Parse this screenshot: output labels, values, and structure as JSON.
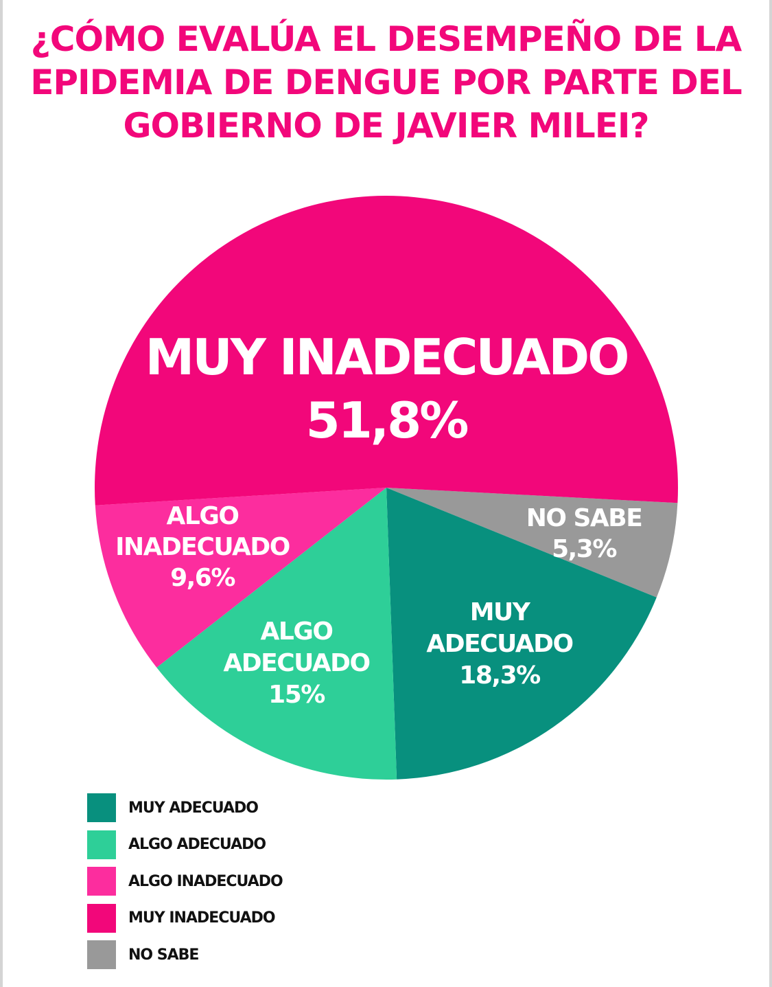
{
  "title": "¿CÓMO EVALÚA EL DESEMPEÑO DE LA EPIDEMIA DE DENGUE POR PARTE DEL GOBIERNO DE JAVIER MILEI?",
  "colors": {
    "title": "#f2077a",
    "muy_adecuado": "#08907e",
    "algo_adecuado": "#2ecf98",
    "algo_inadecuado": "#fc2d9e",
    "muy_inadecuado": "#f2077a",
    "no_sabe": "#999999"
  },
  "chart_data": {
    "type": "pie",
    "title": "¿CÓMO EVALÚA EL DESEMPEÑO DE LA EPIDEMIA DE DENGUE POR PARTE DEL GOBIERNO DE JAVIER MILEI?",
    "slices": [
      {
        "key": "no_sabe",
        "label_lines": [
          "NO SABE"
        ],
        "value_label": "5,3%",
        "value": 5.3,
        "color": "#999999"
      },
      {
        "key": "muy_adecuado",
        "label_lines": [
          "MUY",
          "ADECUADO"
        ],
        "value_label": "18,3%",
        "value": 18.3,
        "color": "#08907e"
      },
      {
        "key": "algo_adecuado",
        "label_lines": [
          "ALGO",
          "ADECUADO"
        ],
        "value_label": "15%",
        "value": 15,
        "color": "#2ecf98"
      },
      {
        "key": "algo_inadecuado",
        "label_lines": [
          "ALGO",
          "INADECUADO"
        ],
        "value_label": "9,6%",
        "value": 9.6,
        "color": "#fc2d9e"
      },
      {
        "key": "muy_inadecuado",
        "label_lines": [
          "MUY INADECUADO"
        ],
        "value_label": "51,8%",
        "value": 51.8,
        "color": "#f2077a"
      }
    ],
    "legend": [
      {
        "label": "MUY ADECUADO",
        "color": "#08907e"
      },
      {
        "label": "ALGO ADECUADO",
        "color": "#2ecf98"
      },
      {
        "label": "ALGO INADECUADO",
        "color": "#fc2d9e"
      },
      {
        "label": "MUY INADECUADO",
        "color": "#f2077a"
      },
      {
        "label": "NO SABE",
        "color": "#999999"
      }
    ],
    "legend_placement": "bottom-left"
  }
}
